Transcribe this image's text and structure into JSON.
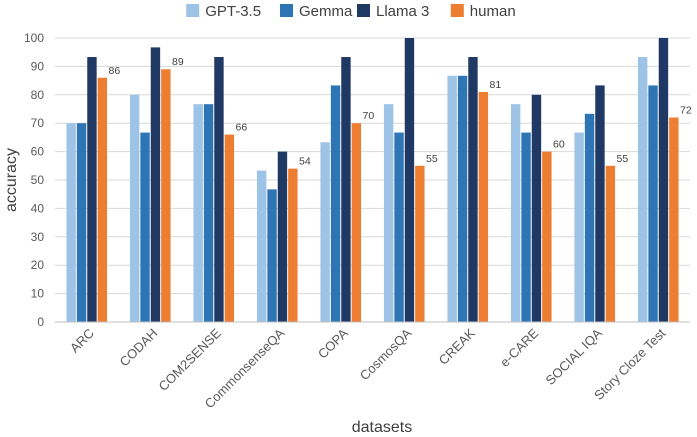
{
  "chart_data": {
    "type": "bar",
    "title": "",
    "xlabel": "datasets",
    "ylabel": "accuracy",
    "ylim": [
      0,
      100
    ],
    "yticks": [
      0,
      10,
      20,
      30,
      40,
      50,
      60,
      70,
      80,
      90,
      100
    ],
    "grid": true,
    "legend_position": "top-center",
    "categories": [
      "ARC",
      "CODAH",
      "COM2SENSE",
      "CommonsenseQA",
      "COPA",
      "CosmosQA",
      "CREAK",
      "e-CARE",
      "SOCIAL IQA",
      "Story Cloze Test"
    ],
    "series": [
      {
        "name": "GPT-3.5",
        "color": "#9DC3E6",
        "values": [
          70,
          80,
          76.7,
          53.3,
          63.3,
          76.7,
          86.7,
          76.7,
          66.7,
          93.3
        ]
      },
      {
        "name": "Gemma",
        "color": "#2E75B6",
        "values": [
          70,
          66.7,
          76.7,
          46.7,
          83.3,
          66.7,
          86.7,
          66.7,
          73.3,
          83.3
        ]
      },
      {
        "name": "Llama 3",
        "color": "#1F3864",
        "values": [
          93.3,
          96.7,
          93.3,
          60,
          93.3,
          100,
          93.3,
          80,
          83.3,
          100
        ]
      },
      {
        "name": "human",
        "color": "#ED7D31",
        "values": [
          86,
          89,
          66,
          54,
          70,
          55,
          81,
          60,
          55,
          72
        ],
        "data_labels": [
          "86",
          "89",
          "66",
          "54",
          "70",
          "55",
          "81",
          "60",
          "55",
          "72"
        ]
      }
    ]
  }
}
